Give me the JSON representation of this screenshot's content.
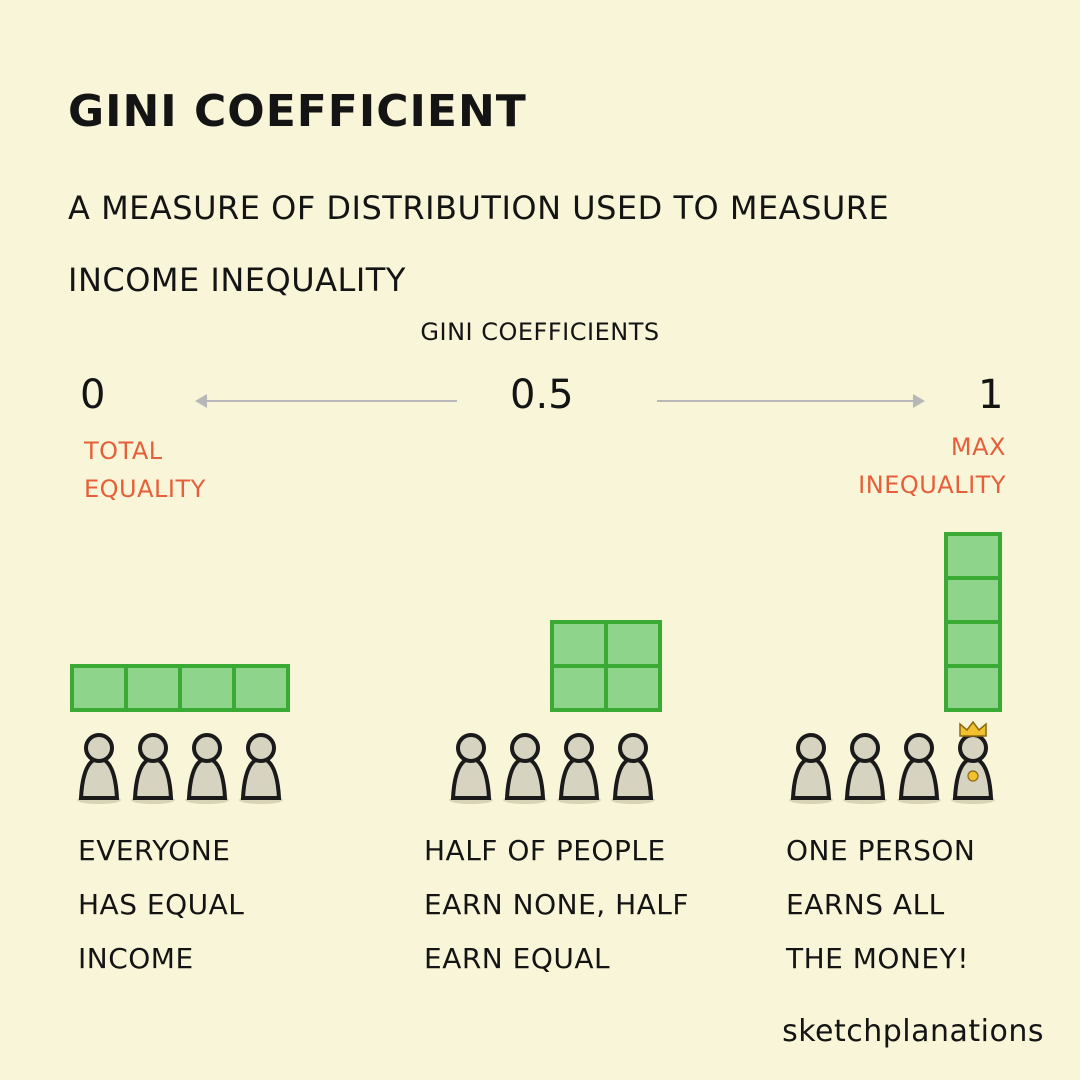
{
  "title": "GINI COEFFICIENT",
  "subtitle_line1": "A MEASURE OF DISTRIBUTION  USED TO MEASURE",
  "subtitle_line2": "INCOME INEQUALITY",
  "scale": {
    "label": "GINI COEFFICIENTS",
    "left_value": "0",
    "middle_value": "0.5",
    "right_value": "1",
    "left_label": [
      "TOTAL",
      "EQUALITY"
    ],
    "right_label": [
      "MAX",
      "INEQUALITY"
    ]
  },
  "panels": [
    {
      "income_blocks": [
        1,
        1,
        1,
        1
      ],
      "caption": [
        "EVERYONE",
        "HAS EQUAL",
        "INCOME"
      ]
    },
    {
      "income_blocks": [
        0,
        0,
        2,
        2
      ],
      "caption": [
        "HALF OF PEOPLE",
        "EARN NONE, HALF",
        "EARN EQUAL"
      ]
    },
    {
      "income_blocks": [
        0,
        0,
        0,
        4
      ],
      "caption": [
        "ONE PERSON",
        "EARNS ALL",
        "THE MONEY!"
      ]
    }
  ],
  "colors": {
    "background": "#f9f5d8",
    "block_fill": "#8fd48b",
    "block_stroke": "#3aaa35",
    "accent_label": "#e5603a",
    "person_fill": "#d7d3c1",
    "crown": "#f2c12e"
  },
  "icons": {
    "person": "person-icon",
    "crown": "crown-icon"
  },
  "brand": "sketchplanations"
}
